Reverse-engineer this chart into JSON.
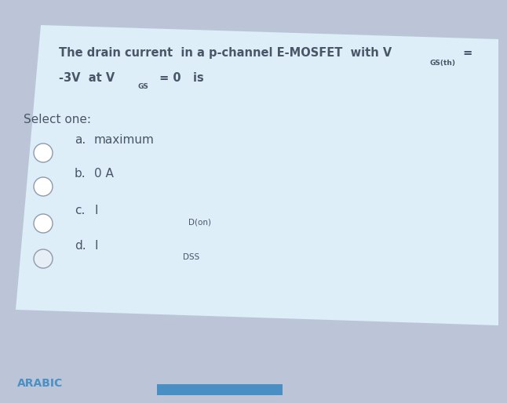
{
  "bg_outer": "#bcc5d8",
  "bg_card": "#ddeef8",
  "title_color": "#4a5568",
  "text_color": "#4a5568",
  "footer_label": "ARABIC",
  "footer_color": "#4a90c4",
  "blue_bar_color": "#4a8fc4",
  "line1_main": "The drain current  in a p-channel E-MOSFET  with V",
  "line1_sub": "GS(th)",
  "line1_eq": " =",
  "line2_pre": "-3V  at V",
  "line2_sub": "GS",
  "line2_post": " = 0   is",
  "select_label": "Select one:",
  "options": [
    {
      "letter": "a.",
      "main": "maximum",
      "sub": ""
    },
    {
      "letter": "b.",
      "main": "0 A",
      "sub": ""
    },
    {
      "letter": "c.",
      "main": "I",
      "sub": "D(on)"
    },
    {
      "letter": "d.",
      "main": "I",
      "sub": "DSS"
    }
  ],
  "fs_title": 10.5,
  "fs_sub": 6.5,
  "fs_select": 11,
  "fs_option": 11,
  "fs_footer": 10
}
